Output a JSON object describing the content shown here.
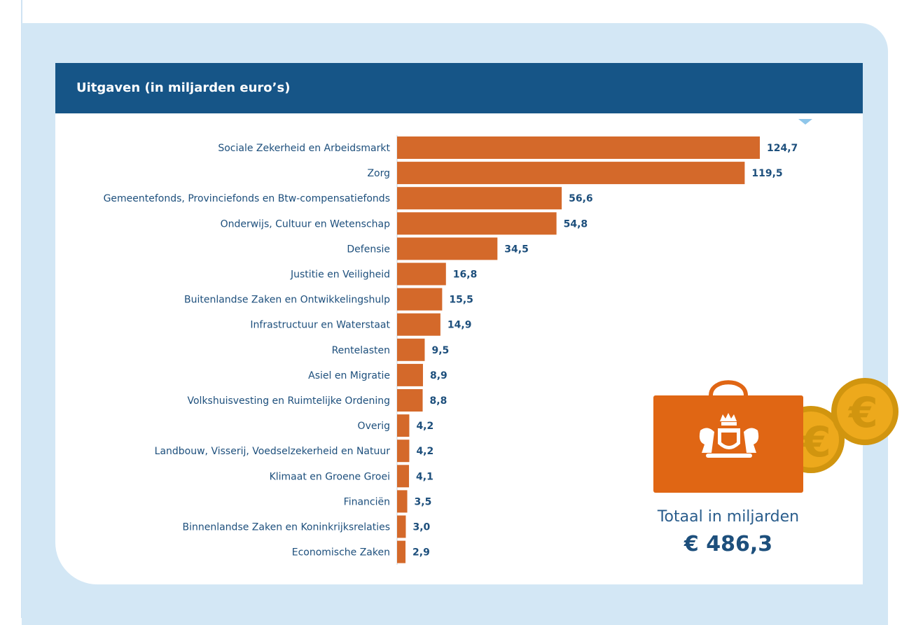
{
  "header": {
    "title": "Uitgaven (in miljarden euro’s)"
  },
  "total": {
    "label": "Totaal in miljarden",
    "value": "€ 486,3"
  },
  "colors": {
    "bar": "#d4692a",
    "header": "#165587",
    "panel": "#d3e7f5",
    "case": "#e06614",
    "coin": "#eda91c"
  },
  "chart_data": {
    "type": "bar",
    "orientation": "horizontal",
    "title": "Uitgaven (in miljarden euro’s)",
    "xlabel": "",
    "ylabel": "",
    "categories": [
      "Sociale Zekerheid en Arbeidsmarkt",
      "Zorg",
      "Gemeentefonds, Provinciefonds en Btw-compensatiefonds",
      "Onderwijs, Cultuur en Wetenschap",
      "Defensie",
      "Justitie en Veiligheid",
      "Buitenlandse Zaken en Ontwikkelingshulp",
      "Infrastructuur en Waterstaat",
      "Rentelasten",
      "Asiel en Migratie",
      "Volkshuisvesting en Ruimtelijke Ordening",
      "Overig",
      "Landbouw, Visserij, Voedselzekerheid en Natuur",
      "Klimaat en Groene Groei",
      "Financiën",
      "Binnenlandse Zaken en Koninkrijksrelaties",
      "Economische Zaken"
    ],
    "values": [
      124.7,
      119.5,
      56.6,
      54.8,
      34.5,
      16.8,
      15.5,
      14.9,
      9.5,
      8.9,
      8.8,
      4.2,
      4.2,
      4.1,
      3.5,
      3.0,
      2.9
    ],
    "value_labels": [
      "124,7",
      "119,5",
      "56,6",
      "54,8",
      "34,5",
      "16,8",
      "15,5",
      "14,9",
      "9,5",
      "8,9",
      "8,8",
      "4,2",
      "4,2",
      "4,1",
      "3,5",
      "3,0",
      "2,9"
    ],
    "xlim": [
      0,
      124.7
    ],
    "grid": false,
    "legend": "none"
  }
}
